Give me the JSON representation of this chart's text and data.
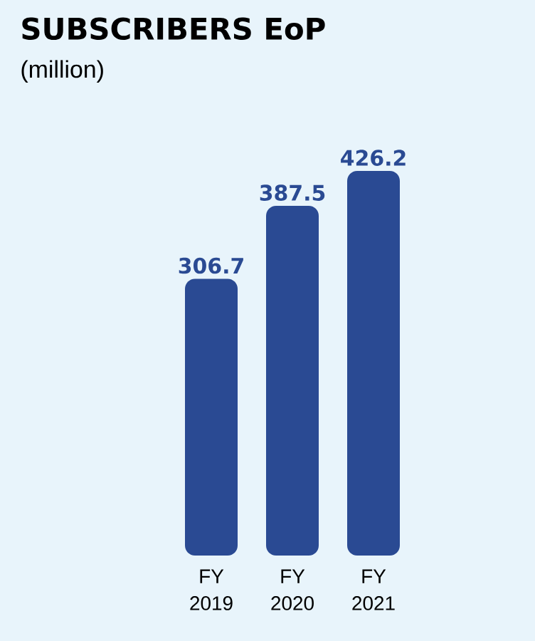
{
  "chart_data": {
    "type": "bar",
    "title": "SUBSCRIBERS EoP",
    "subtitle": "(million)",
    "categories": [
      "FY 2019",
      "FY 2020",
      "FY 2021"
    ],
    "values": [
      306.7,
      387.5,
      426.2
    ],
    "value_labels": [
      "306.7",
      "387.5",
      "426.2"
    ],
    "color": "#2a4a93",
    "tick_labels": "x"
  }
}
